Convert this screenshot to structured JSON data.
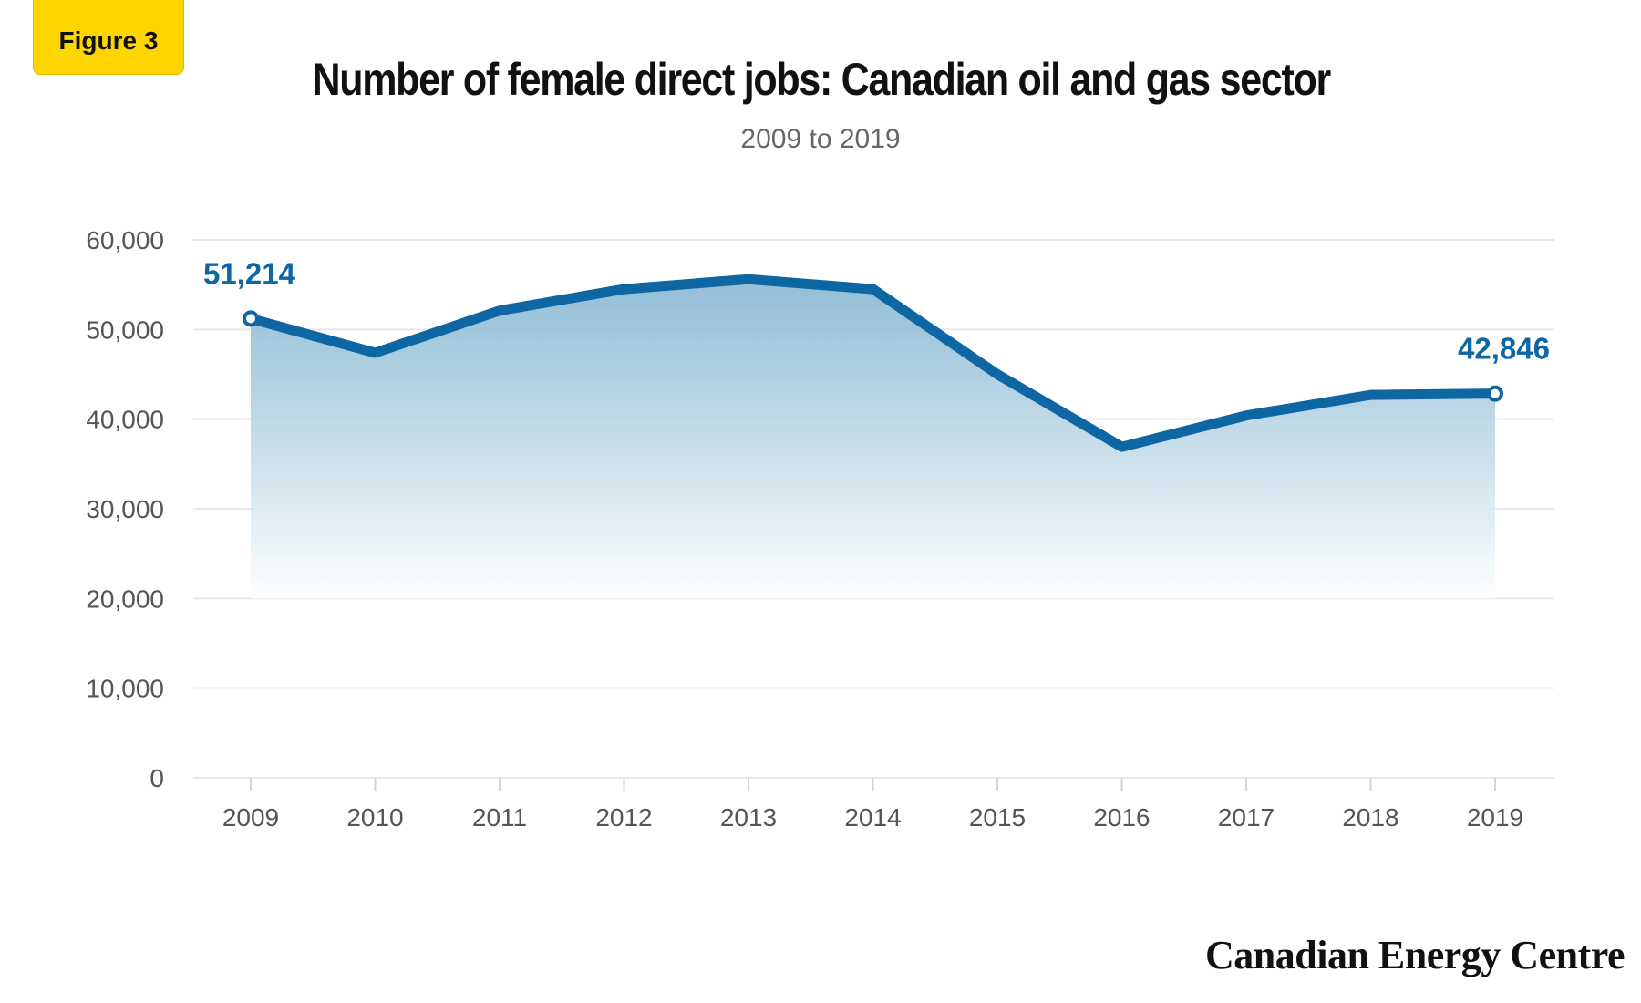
{
  "figure_label": "Figure 3",
  "brand": "Canadian Energy Centre",
  "colors": {
    "line": "#0e67a3",
    "fill_top": "#7fb3d0",
    "grid": "#e4e8ec",
    "badge": "#ffd500"
  },
  "chart_data": {
    "type": "area",
    "title": "Number of female direct jobs: Canadian oil and gas sector",
    "subtitle": "2009 to 2019",
    "xlabel": "",
    "ylabel": "",
    "x": [
      "2009",
      "2010",
      "2011",
      "2012",
      "2013",
      "2014",
      "2015",
      "2016",
      "2017",
      "2018",
      "2019"
    ],
    "values": [
      51214,
      47400,
      52100,
      54500,
      55600,
      54500,
      45000,
      36900,
      40400,
      42700,
      42846
    ],
    "ylim": [
      0,
      60000
    ],
    "yticks": [
      "0",
      "10,000",
      "20,000",
      "30,000",
      "40,000",
      "50,000",
      "60,000"
    ],
    "data_labels": [
      {
        "index": 0,
        "text": "51,214"
      },
      {
        "index": 10,
        "text": "42,846"
      }
    ],
    "fill_floor": 20000,
    "grid": true,
    "legend": "none"
  }
}
